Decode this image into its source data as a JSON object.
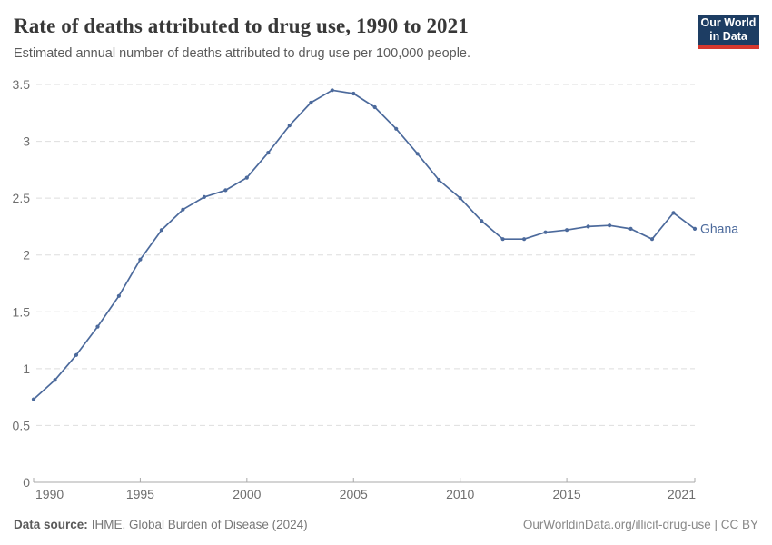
{
  "header": {
    "title": "Rate of deaths attributed to drug use, 1990 to 2021",
    "subtitle": "Estimated annual number of deaths attributed to drug use per 100,000 people.",
    "logo": {
      "line1": "Our World",
      "line2": "in Data",
      "bg_color": "#1d3d63",
      "stripe_color": "#d7382e"
    }
  },
  "chart_data": {
    "type": "line",
    "title": "Rate of deaths attributed to drug use, 1990 to 2021",
    "xlabel": "",
    "ylabel": "",
    "xlim": [
      1990,
      2021
    ],
    "ylim": [
      0,
      3.5
    ],
    "grid": "horizontal-dashed",
    "legend": "entity-label-right-of-line",
    "x": [
      1990,
      1991,
      1992,
      1993,
      1994,
      1995,
      1996,
      1997,
      1998,
      1999,
      2000,
      2001,
      2002,
      2003,
      2004,
      2005,
      2006,
      2007,
      2008,
      2009,
      2010,
      2011,
      2012,
      2013,
      2014,
      2015,
      2016,
      2017,
      2018,
      2019,
      2020,
      2021
    ],
    "series": [
      {
        "name": "Ghana",
        "color": "#4C6A9C",
        "values": [
          0.73,
          0.9,
          1.12,
          1.37,
          1.64,
          1.96,
          2.22,
          2.4,
          2.51,
          2.57,
          2.68,
          2.9,
          3.14,
          3.34,
          3.45,
          3.42,
          3.3,
          3.11,
          2.89,
          2.66,
          2.5,
          2.3,
          2.14,
          2.14,
          2.2,
          2.22,
          2.25,
          2.26,
          2.23,
          2.14,
          2.37,
          2.23
        ]
      }
    ],
    "x_ticks": [
      1990,
      1995,
      2000,
      2005,
      2010,
      2015,
      2021
    ],
    "x_tick_labels": [
      "1990",
      "1995",
      "2000",
      "2005",
      "2010",
      "2015",
      "2021"
    ],
    "y_ticks": [
      0,
      0.5,
      1,
      1.5,
      2,
      2.5,
      3,
      3.5
    ],
    "y_tick_labels": [
      "0",
      "0.5",
      "1",
      "1.5",
      "2",
      "2.5",
      "3",
      "3.5"
    ]
  },
  "footer": {
    "source_label": "Data source:",
    "source_value": "IHME, Global Burden of Disease (2024)",
    "credit": "OurWorldinData.org/illicit-drug-use | CC BY"
  },
  "colors": {
    "line": "#4C6A9C",
    "grid": "#dedede",
    "axis": "#a9a9a9",
    "tick_label": "#6e6e6e",
    "title_text": "#383838",
    "subtitle_text": "#5b5b5b"
  }
}
